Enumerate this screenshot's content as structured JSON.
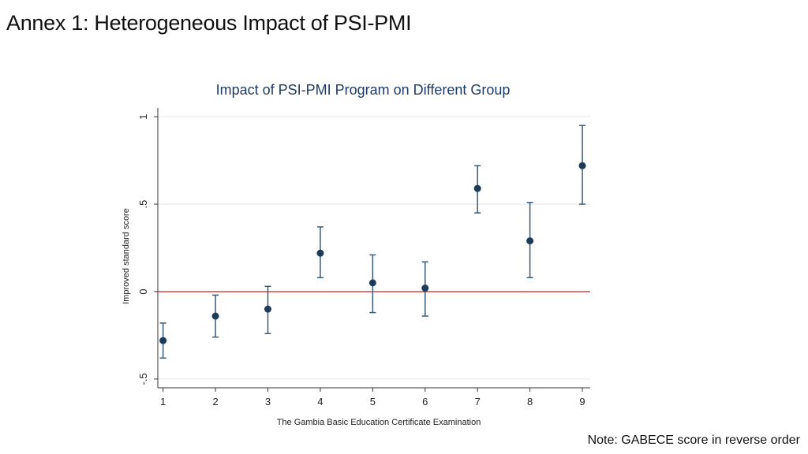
{
  "slide": {
    "title": "Annex 1: Heterogeneous Impact of PSI-PMI",
    "note": "Note: GABECE score in reverse order"
  },
  "chart_data": {
    "type": "scatter",
    "subtype": "point estimates with confidence intervals",
    "title": "Impact of  PSI-PMI Program on Different Group",
    "xlabel": "The Gambia Basic Education Certificate Examination",
    "ylabel": "Improved standard score",
    "x": [
      1,
      2,
      3,
      4,
      5,
      6,
      7,
      8,
      9
    ],
    "x_tick_labels": [
      "1",
      "2",
      "3",
      "4",
      "5",
      "6",
      "7",
      "8",
      "9"
    ],
    "y": [
      -0.28,
      -0.14,
      -0.1,
      0.22,
      0.05,
      0.02,
      0.59,
      0.29,
      0.72
    ],
    "ci_low": [
      -0.38,
      -0.26,
      -0.24,
      0.08,
      -0.12,
      -0.14,
      0.45,
      0.08,
      0.5
    ],
    "ci_high": [
      -0.18,
      -0.02,
      0.03,
      0.37,
      0.21,
      0.17,
      0.72,
      0.51,
      0.95
    ],
    "y_ticks": [
      -0.5,
      0,
      0.5,
      1
    ],
    "y_tick_labels": [
      "-.5",
      "0",
      ".5",
      "1"
    ],
    "xlim": [
      0.9,
      9.15
    ],
    "ylim": [
      -0.55,
      1.05
    ],
    "reference_line": {
      "y": 0,
      "color": "#cc2222"
    },
    "grid": true,
    "colors": {
      "marker": "#1f3b5a",
      "error_bar": "#3a5a78",
      "grid": "#e6e6e6",
      "axis": "#333333"
    }
  }
}
